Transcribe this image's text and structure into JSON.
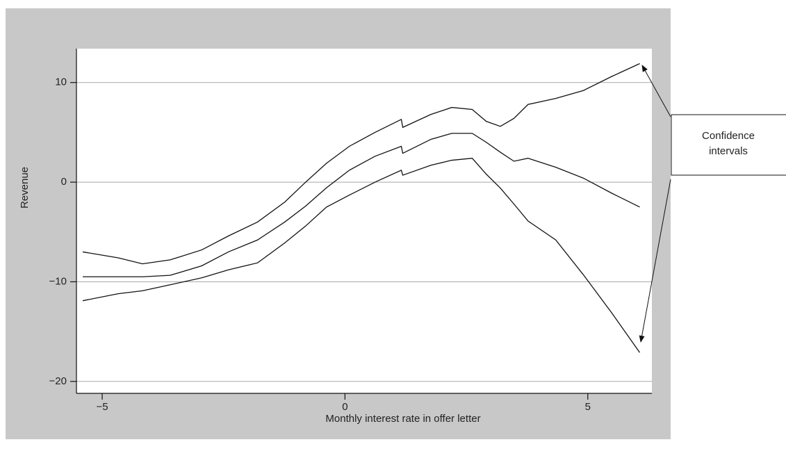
{
  "chart_data": {
    "type": "line",
    "x_label": "Monthly interest rate in offer letter",
    "y_label": "Revenue",
    "annotation": [
      "Confidence",
      "intervals"
    ],
    "x": [
      -5.4,
      -4.67,
      -4.17,
      -3.6,
      -2.95,
      -2.4,
      -1.8,
      -1.24,
      -0.81,
      -0.38,
      0.09,
      0.62,
      1.16,
      1.19,
      1.77,
      2.2,
      2.62,
      2.91,
      3.2,
      3.48,
      3.77,
      4.34,
      4.91,
      5.49,
      6.07
    ],
    "series": [
      {
        "color": "#111111",
        "values": [
          -7.0,
          -7.6,
          -8.2,
          -7.8,
          -6.8,
          -5.4,
          -4.0,
          -2.0,
          0,
          1.9,
          3.6,
          5.0,
          6.3,
          5.5,
          6.8,
          7.5,
          7.3,
          6.1,
          5.6,
          6.4,
          7.8,
          8.4,
          9.2,
          10.6,
          11.9
        ]
      },
      {
        "color": "#111111",
        "values": [
          -9.5,
          -9.5,
          -9.5,
          -9.35,
          -8.4,
          -7.0,
          -5.8,
          -4.0,
          -2.4,
          -0.56,
          1.2,
          2.6,
          3.6,
          2.9,
          4.3,
          4.9,
          4.9,
          4.0,
          3.0,
          2.1,
          2.4,
          1.5,
          0.4,
          -1.1,
          -2.5
        ]
      },
      {
        "color": "#111111",
        "values": [
          -11.9,
          -11.2,
          -10.9,
          -10.3,
          -9.6,
          -8.8,
          -8.1,
          -6.1,
          -4.4,
          -2.5,
          -1.3,
          0,
          1.2,
          0.7,
          1.7,
          2.2,
          2.4,
          0.8,
          -0.6,
          -2.2,
          -3.9,
          -5.8,
          -9.3,
          -13.1,
          -17.1
        ]
      }
    ],
    "xlim": [
      -5.53,
      6.32
    ],
    "ylim": [
      -21.2,
      13.4
    ],
    "xticks": [
      {
        "value": -5,
        "label": "−5"
      },
      0,
      5
    ],
    "yticks": [
      {
        "value": -20,
        "label": "−20"
      },
      {
        "value": -10,
        "label": "−10"
      },
      0,
      10
    ],
    "grid": true
  }
}
